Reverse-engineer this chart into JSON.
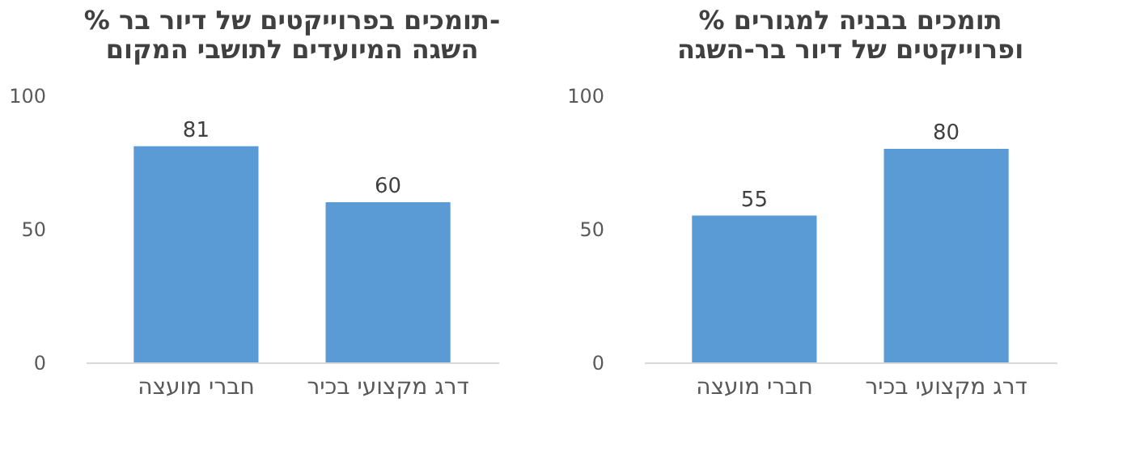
{
  "chart_data": [
    {
      "type": "bar",
      "title": "% תומכים בפרוייקטים של דיור בר-\nהשגה המיועדים לתושבי המקום",
      "categories": [
        "חברי מועצה",
        "דרג מקצועי בכיר"
      ],
      "values": [
        81,
        60
      ],
      "color": "#5b9bd5",
      "ylim": [
        0,
        100
      ],
      "yticks": [
        0,
        50,
        100
      ],
      "grid": false,
      "data_labels": true
    },
    {
      "type": "bar",
      "title": "% תומכים בבניה למגורים\nופרוייקטים של דיור בר-השגה",
      "categories": [
        "חברי מועצה",
        "דרג מקצועי בכיר"
      ],
      "values": [
        55,
        80
      ],
      "color": "#5b9bd5",
      "ylim": [
        0,
        100
      ],
      "yticks": [
        0,
        50,
        100
      ],
      "grid": false,
      "data_labels": true
    }
  ]
}
